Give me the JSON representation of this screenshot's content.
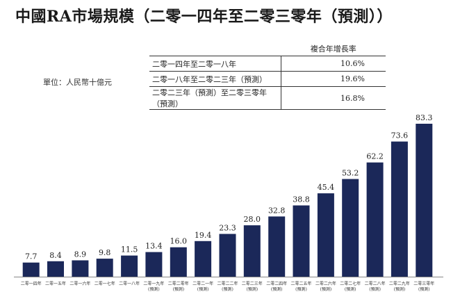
{
  "title": "中國RA市場規模（二零一四年至二零三零年（預測））",
  "unit_label": "單位：人民幣十億元",
  "cagr_table": {
    "header": "複合年增長率",
    "rows": [
      {
        "period": "二零一四年至二零一八年",
        "rate": "10.6%"
      },
      {
        "period": "二零一八年至二零二三年（預測）",
        "rate": "19.6%"
      },
      {
        "period": "二零二三年（預測）至二零三零年（預測）",
        "rate": "16.8%"
      }
    ]
  },
  "chart_data": {
    "type": "bar",
    "categories": [
      [
        "二零一四年"
      ],
      [
        "二零一五年"
      ],
      [
        "二零一六年"
      ],
      [
        "二零一七年"
      ],
      [
        "二零一八年"
      ],
      [
        "二零一九年",
        "(預測)"
      ],
      [
        "二零二零年",
        "(預測)"
      ],
      [
        "二零二一年",
        "(預測)"
      ],
      [
        "二零二二年",
        "(預測)"
      ],
      [
        "二零二三年",
        "(預測)"
      ],
      [
        "二零二四年",
        "(預測)"
      ],
      [
        "二零二五年",
        "(預測)"
      ],
      [
        "二零二六年",
        "(預測)"
      ],
      [
        "二零二七年",
        "(預測)"
      ],
      [
        "二零二八年",
        "(預測)"
      ],
      [
        "二零二九年",
        "(預測)"
      ],
      [
        "二零三零年",
        "(預測)"
      ]
    ],
    "values": [
      7.7,
      8.4,
      8.9,
      9.8,
      11.5,
      13.4,
      16.0,
      19.4,
      23.3,
      28.0,
      32.8,
      38.8,
      45.4,
      53.2,
      62.2,
      73.6,
      83.3
    ],
    "value_labels": [
      "7.7",
      "8.4",
      "8.9",
      "9.8",
      "11.5",
      "13.4",
      "16.0",
      "19.4",
      "23.3",
      "28.0",
      "32.8",
      "38.8",
      "45.4",
      "53.2",
      "62.2",
      "73.6",
      "83.3"
    ],
    "bar_color": "#1b2859",
    "axis_color": "#888888",
    "ylim": [
      0,
      83.3
    ],
    "grid": false
  }
}
